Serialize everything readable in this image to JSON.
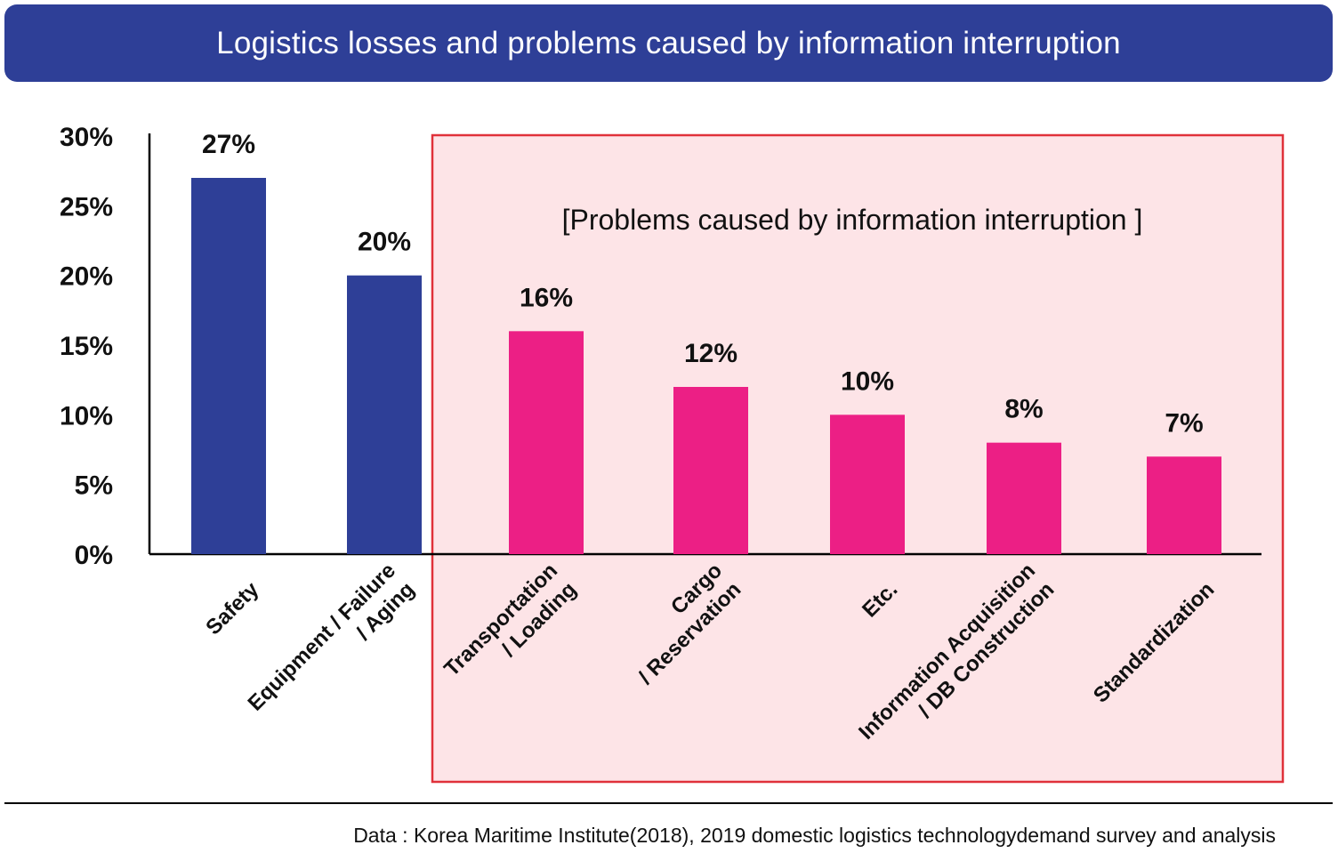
{
  "header": {
    "title": "Logistics losses and problems caused by information interruption"
  },
  "chart_data": {
    "type": "bar",
    "title": "Logistics losses and problems caused by information interruption",
    "xlabel": "",
    "ylabel": "",
    "ylim": [
      0,
      30
    ],
    "yticks": [
      "0%",
      "5%",
      "10%",
      "15%",
      "20%",
      "25%",
      "30%"
    ],
    "ytick_values": [
      0,
      5,
      10,
      15,
      20,
      25,
      30
    ],
    "grid": false,
    "categories": [
      [
        "Safety"
      ],
      [
        "Equipment / Failure",
        "/ Aging"
      ],
      [
        "Transportation",
        "/ Loading"
      ],
      [
        "Cargo",
        "/ Reservation"
      ],
      [
        "Etc."
      ],
      [
        "Information Acquisition",
        "/ DB Construction"
      ],
      [
        "Standardization"
      ]
    ],
    "values": [
      27,
      20,
      16,
      12,
      10,
      8,
      7
    ],
    "value_labels": [
      "27%",
      "20%",
      "16%",
      "12%",
      "10%",
      "8%",
      "7%"
    ],
    "bar_colors": [
      "#2e3f97",
      "#2e3f97",
      "#ec1f85",
      "#ec1f85",
      "#ec1f85",
      "#ec1f85",
      "#ec1f85"
    ],
    "highlight": {
      "label": "[Problems caused by information interruption ]",
      "from_index": 2,
      "to_index": 6,
      "fill": "#fde4e7",
      "border": "#e0313a"
    }
  },
  "footer": {
    "source": "Data : Korea Maritime Institute(2018), 2019 domestic logistics technologydemand survey and analysis"
  }
}
